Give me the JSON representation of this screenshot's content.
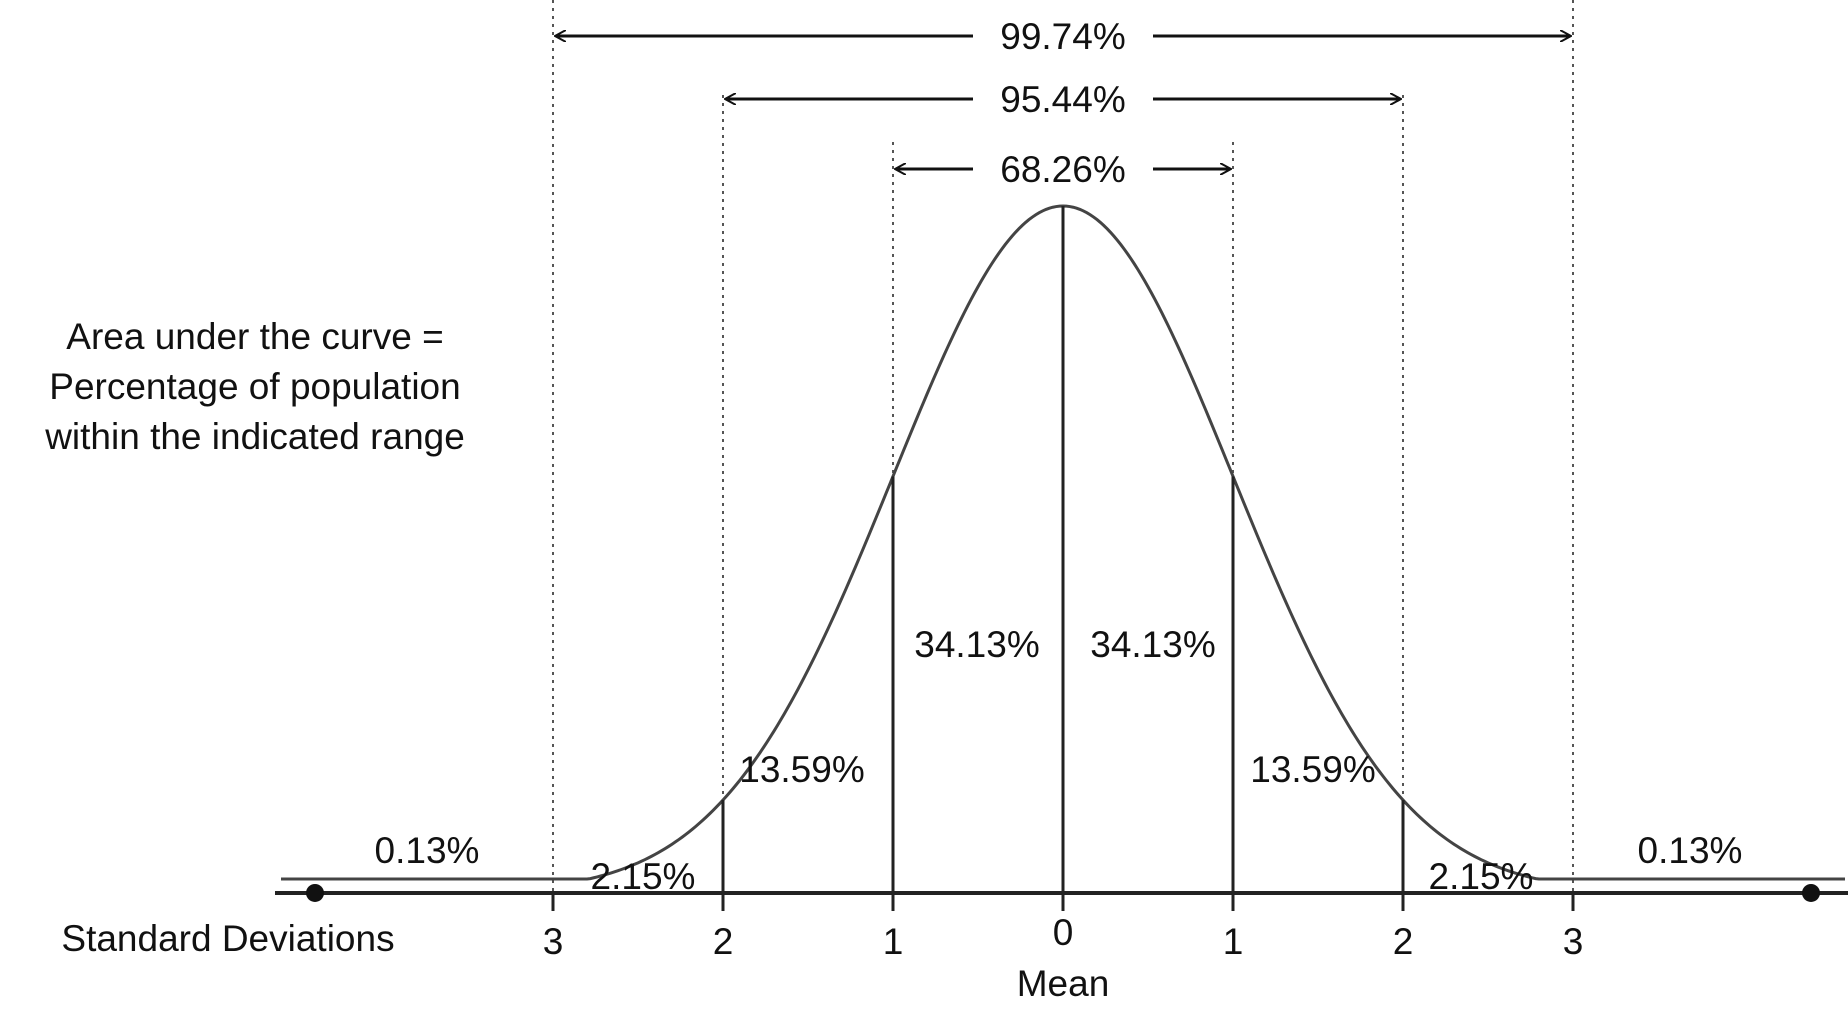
{
  "chart_data": {
    "type": "line",
    "description_lines": [
      "Area under the curve =",
      "Percentage of population",
      "within the indicated range"
    ],
    "xlabel": "Standard Deviations",
    "mean_label": "Mean",
    "x_ticks": [
      {
        "value": -3,
        "label": "3"
      },
      {
        "value": -2,
        "label": "2"
      },
      {
        "value": -1,
        "label": "1"
      },
      {
        "value": 0,
        "label": "0"
      },
      {
        "value": 1,
        "label": "1"
      },
      {
        "value": 2,
        "label": "2"
      },
      {
        "value": 3,
        "label": "3"
      }
    ],
    "xlim": [
      -4.6,
      4.6
    ],
    "curve": {
      "mu": 0,
      "sigma": 1
    },
    "region_labels": [
      {
        "x_from": -4.5,
        "x_to": -3,
        "label": "0.13%"
      },
      {
        "x_from": -3,
        "x_to": -2,
        "label": "2.15%"
      },
      {
        "x_from": -2,
        "x_to": -1,
        "label": "13.59%"
      },
      {
        "x_from": -1,
        "x_to": 0,
        "label": "34.13%"
      },
      {
        "x_from": 0,
        "x_to": 1,
        "label": "34.13%"
      },
      {
        "x_from": 1,
        "x_to": 2,
        "label": "13.59%"
      },
      {
        "x_from": 2,
        "x_to": 3,
        "label": "2.15%"
      },
      {
        "x_from": 3,
        "x_to": 4.5,
        "label": "0.13%"
      }
    ],
    "ranges": [
      {
        "from": -3,
        "to": 3,
        "label": "99.74%"
      },
      {
        "from": -2,
        "to": 2,
        "label": "95.44%"
      },
      {
        "from": -1,
        "to": 1,
        "label": "68.26%"
      }
    ],
    "tail_endpoints": [
      -4.4,
      4.4
    ],
    "grid": false
  }
}
